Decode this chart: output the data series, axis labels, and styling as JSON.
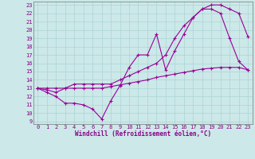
{
  "xlabel": "Windchill (Refroidissement éolien,°C)",
  "bg_color": "#cce8e8",
  "grid_color": "#aad4d4",
  "line_color": "#990099",
  "xmin": 0,
  "xmax": 23,
  "ymin": 9,
  "ymax": 23,
  "yticks": [
    9,
    10,
    11,
    12,
    13,
    14,
    15,
    16,
    17,
    18,
    19,
    20,
    21,
    22,
    23
  ],
  "xticks": [
    0,
    1,
    2,
    3,
    4,
    5,
    6,
    7,
    8,
    9,
    10,
    11,
    12,
    13,
    14,
    15,
    16,
    17,
    18,
    19,
    20,
    21,
    22,
    23
  ],
  "line1_x": [
    0,
    1,
    2,
    3,
    4,
    5,
    6,
    7,
    8,
    9,
    10,
    11,
    12,
    13,
    14,
    15,
    16,
    17,
    18,
    19,
    20,
    21,
    22,
    23
  ],
  "line1_y": [
    13.0,
    12.5,
    12.0,
    11.2,
    11.2,
    11.0,
    10.5,
    9.3,
    11.5,
    13.3,
    15.5,
    17.0,
    17.0,
    19.5,
    15.2,
    17.5,
    19.5,
    21.5,
    22.5,
    22.5,
    22.0,
    19.0,
    16.2,
    15.2
  ],
  "line2_x": [
    0,
    1,
    2,
    3,
    4,
    5,
    6,
    7,
    8,
    9,
    10,
    11,
    12,
    13,
    14,
    15,
    16,
    17,
    18,
    19,
    20,
    21,
    22,
    23
  ],
  "line2_y": [
    13.0,
    12.8,
    12.5,
    13.0,
    13.5,
    13.5,
    13.5,
    13.5,
    13.5,
    14.0,
    14.5,
    15.0,
    15.5,
    16.0,
    17.0,
    19.0,
    20.5,
    21.5,
    22.5,
    23.0,
    23.0,
    22.5,
    22.0,
    19.2
  ],
  "line3_x": [
    0,
    1,
    2,
    3,
    4,
    5,
    6,
    7,
    8,
    9,
    10,
    11,
    12,
    13,
    14,
    15,
    16,
    17,
    18,
    19,
    20,
    21,
    22,
    23
  ],
  "line3_y": [
    13.0,
    13.0,
    13.0,
    13.0,
    13.0,
    13.0,
    13.0,
    13.0,
    13.2,
    13.4,
    13.6,
    13.8,
    14.0,
    14.3,
    14.5,
    14.7,
    14.9,
    15.1,
    15.3,
    15.4,
    15.5,
    15.5,
    15.5,
    15.2
  ]
}
